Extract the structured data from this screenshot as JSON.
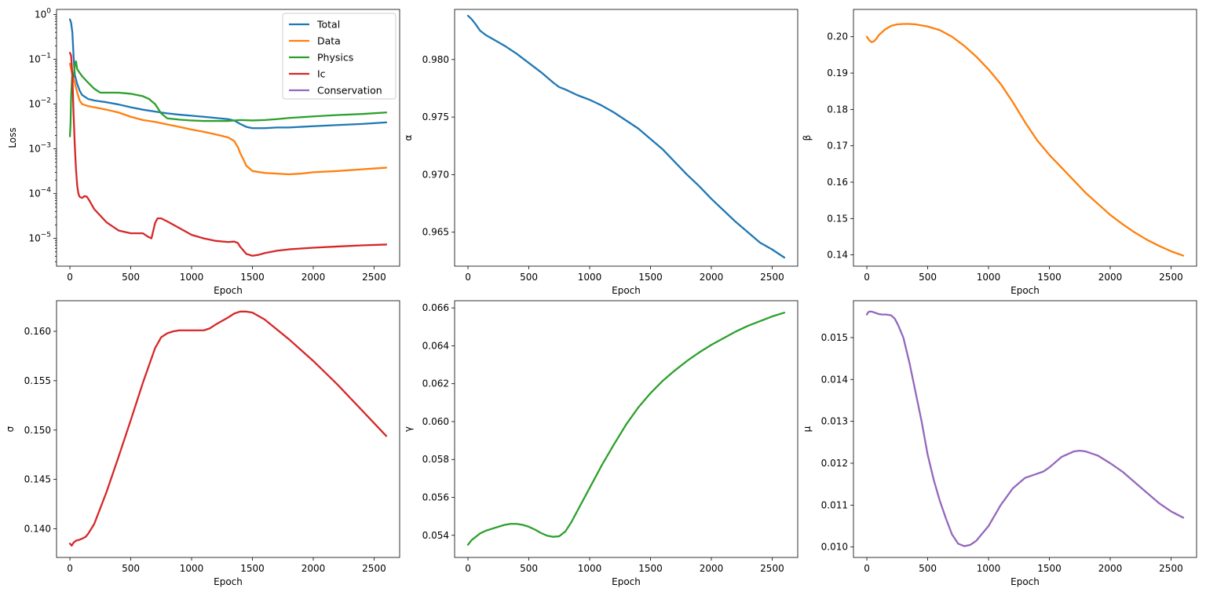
{
  "chart_data": [
    {
      "type": "line",
      "name": "loss",
      "xlabel": "Epoch",
      "ylabel": "Loss",
      "yscale": "log",
      "xlim": [
        -110,
        2710
      ],
      "ylim": [
        2.4e-06,
        1.3
      ],
      "xticks": [
        0,
        500,
        1000,
        1500,
        2000,
        2500
      ],
      "yticks": [
        {
          "value": 1e-05,
          "base": "10",
          "exp": "−5"
        },
        {
          "value": 0.0001,
          "base": "10",
          "exp": "−4"
        },
        {
          "value": 0.001,
          "base": "10",
          "exp": "−3"
        },
        {
          "value": 0.01,
          "base": "10",
          "exp": "−2"
        },
        {
          "value": 0.1,
          "base": "10",
          "exp": "−1"
        },
        {
          "value": 1,
          "base": "10",
          "exp": "0"
        }
      ],
      "legend_position": "top-right",
      "series": [
        {
          "name": "Total",
          "color": "#1f77b4",
          "x": [
            0,
            10,
            20,
            30,
            40,
            60,
            80,
            100,
            150,
            200,
            300,
            400,
            500,
            600,
            700,
            800,
            900,
            1000,
            1100,
            1200,
            1300,
            1350,
            1400,
            1450,
            1500,
            1600,
            1700,
            1800,
            2000,
            2200,
            2400,
            2600
          ],
          "y": [
            0.78,
            0.65,
            0.4,
            0.12,
            0.045,
            0.028,
            0.02,
            0.016,
            0.013,
            0.012,
            0.011,
            0.0098,
            0.0085,
            0.0075,
            0.0068,
            0.0062,
            0.0058,
            0.0055,
            0.0052,
            0.0049,
            0.0046,
            0.0043,
            0.0036,
            0.0031,
            0.0029,
            0.0029,
            0.003,
            0.003,
            0.0032,
            0.0034,
            0.0036,
            0.0039
          ]
        },
        {
          "name": "Data",
          "color": "#ff7f0e",
          "x": [
            0,
            10,
            20,
            40,
            60,
            80,
            100,
            150,
            200,
            300,
            400,
            500,
            600,
            700,
            800,
            900,
            1000,
            1100,
            1200,
            1300,
            1350,
            1380,
            1400,
            1430,
            1450,
            1500,
            1600,
            1700,
            1800,
            1900,
            2000,
            2200,
            2400,
            2600
          ],
          "y": [
            0.08,
            0.06,
            0.045,
            0.03,
            0.018,
            0.012,
            0.01,
            0.009,
            0.0085,
            0.0075,
            0.0065,
            0.0052,
            0.0044,
            0.004,
            0.0035,
            0.0031,
            0.0027,
            0.0024,
            0.0021,
            0.0018,
            0.0015,
            0.0011,
            0.0008,
            0.00055,
            0.00042,
            0.00032,
            0.00029,
            0.00028,
            0.00027,
            0.00028,
            0.0003,
            0.00032,
            0.00035,
            0.00038
          ]
        },
        {
          "name": "Physics",
          "color": "#2ca02c",
          "x": [
            0,
            5,
            10,
            20,
            30,
            40,
            50,
            60,
            70,
            80,
            100,
            150,
            200,
            250,
            300,
            400,
            500,
            600,
            650,
            700,
            750,
            800,
            900,
            1000,
            1100,
            1200,
            1300,
            1400,
            1500,
            1600,
            1700,
            1800,
            2000,
            2200,
            2400,
            2600
          ],
          "y": [
            0.0019,
            0.0035,
            0.015,
            0.05,
            0.04,
            0.07,
            0.09,
            0.06,
            0.055,
            0.05,
            0.042,
            0.03,
            0.022,
            0.018,
            0.018,
            0.018,
            0.017,
            0.015,
            0.013,
            0.01,
            0.0062,
            0.0048,
            0.0045,
            0.0043,
            0.0042,
            0.0042,
            0.0042,
            0.0044,
            0.0043,
            0.0044,
            0.0046,
            0.0049,
            0.0053,
            0.0057,
            0.006,
            0.0065
          ]
        },
        {
          "name": "Ic",
          "color": "#d62728",
          "x": [
            0,
            10,
            20,
            30,
            40,
            50,
            60,
            70,
            80,
            100,
            120,
            140,
            160,
            200,
            300,
            400,
            500,
            550,
            600,
            640,
            670,
            700,
            720,
            750,
            800,
            900,
            1000,
            1100,
            1200,
            1300,
            1350,
            1380,
            1400,
            1450,
            1500,
            1550,
            1600,
            1700,
            1800,
            2000,
            2200,
            2400,
            2600
          ],
          "y": [
            0.14,
            0.12,
            0.045,
            0.006,
            0.0012,
            0.00035,
            0.00015,
            0.0001,
            8.5e-05,
            8e-05,
            8.8e-05,
            8.5e-05,
            7e-05,
            4.5e-05,
            2.3e-05,
            1.5e-05,
            1.3e-05,
            1.3e-05,
            1.3e-05,
            1.1e-05,
            1e-05,
            2.2e-05,
            2.8e-05,
            2.8e-05,
            2.4e-05,
            1.7e-05,
            1.2e-05,
            1e-05,
            8.8e-06,
            8.3e-06,
            8.5e-06,
            7.9e-06,
            6.5e-06,
            4.5e-06,
            4.1e-06,
            4.3e-06,
            4.7e-06,
            5.3e-06,
            5.7e-06,
            6.2e-06,
            6.6e-06,
            7e-06,
            7.3e-06
          ]
        },
        {
          "name": "Conservation",
          "color": "#9467bd",
          "x": [],
          "y": []
        }
      ]
    },
    {
      "type": "line",
      "name": "alpha",
      "xlabel": "Epoch",
      "ylabel": "α",
      "xlim": [
        -110,
        2710
      ],
      "ylim": [
        0.96205,
        0.98435
      ],
      "xticks": [
        0,
        500,
        1000,
        1500,
        2000,
        2500
      ],
      "yticks": [
        0.965,
        0.97,
        0.975,
        0.98
      ],
      "ytick_labels": [
        "0.965",
        "0.970",
        "0.975",
        "0.980"
      ],
      "series": [
        {
          "name": "α",
          "color": "#1f77b4",
          "x": [
            0,
            30,
            60,
            100,
            150,
            200,
            300,
            400,
            500,
            600,
            700,
            750,
            800,
            900,
            1000,
            1100,
            1200,
            1300,
            1400,
            1500,
            1600,
            1700,
            1800,
            1900,
            2000,
            2100,
            2200,
            2300,
            2400,
            2500,
            2600
          ],
          "y": [
            0.9838,
            0.9835,
            0.9831,
            0.9825,
            0.9821,
            0.9818,
            0.9812,
            0.9805,
            0.9797,
            0.9789,
            0.978,
            0.9776,
            0.9774,
            0.9769,
            0.9765,
            0.976,
            0.9754,
            0.9747,
            0.974,
            0.9731,
            0.9722,
            0.9711,
            0.97,
            0.969,
            0.9679,
            0.9669,
            0.9659,
            0.965,
            0.9641,
            0.9635,
            0.9628
          ]
        }
      ]
    },
    {
      "type": "line",
      "name": "beta",
      "xlabel": "Epoch",
      "ylabel": "β",
      "xlim": [
        -110,
        2710
      ],
      "ylim": [
        0.1369,
        0.2075
      ],
      "xticks": [
        0,
        500,
        1000,
        1500,
        2000,
        2500
      ],
      "yticks": [
        0.14,
        0.15,
        0.16,
        0.17,
        0.18,
        0.19,
        0.2
      ],
      "ytick_labels": [
        "0.14",
        "0.15",
        "0.16",
        "0.17",
        "0.18",
        "0.19",
        "0.20"
      ],
      "series": [
        {
          "name": "β",
          "color": "#ff7f0e",
          "x": [
            0,
            20,
            40,
            60,
            80,
            100,
            150,
            200,
            250,
            300,
            350,
            400,
            500,
            600,
            700,
            800,
            900,
            1000,
            1100,
            1200,
            1300,
            1400,
            1500,
            1600,
            1700,
            1800,
            1900,
            2000,
            2100,
            2200,
            2300,
            2400,
            2500,
            2600
          ],
          "y": [
            0.2,
            0.199,
            0.1985,
            0.1988,
            0.1995,
            0.2005,
            0.202,
            0.203,
            0.2034,
            0.2035,
            0.2035,
            0.2034,
            0.2028,
            0.2018,
            0.2,
            0.1975,
            0.1945,
            0.191,
            0.187,
            0.182,
            0.1765,
            0.1715,
            0.1675,
            0.164,
            0.1605,
            0.157,
            0.154,
            0.151,
            0.1485,
            0.1462,
            0.1442,
            0.1425,
            0.141,
            0.1398
          ]
        }
      ]
    },
    {
      "type": "line",
      "name": "sigma",
      "xlabel": "Epoch",
      "ylabel": "σ",
      "xlim": [
        -110,
        2710
      ],
      "ylim": [
        0.1371,
        0.1631
      ],
      "xticks": [
        0,
        500,
        1000,
        1500,
        2000,
        2500
      ],
      "yticks": [
        0.14,
        0.145,
        0.15,
        0.155,
        0.16
      ],
      "ytick_labels": [
        "0.140",
        "0.145",
        "0.150",
        "0.155",
        "0.160"
      ],
      "series": [
        {
          "name": "σ",
          "color": "#d62728",
          "x": [
            0,
            15,
            30,
            50,
            80,
            100,
            130,
            150,
            200,
            300,
            400,
            500,
            600,
            700,
            750,
            800,
            850,
            900,
            950,
            1000,
            1050,
            1100,
            1150,
            1200,
            1300,
            1350,
            1400,
            1450,
            1500,
            1600,
            1800,
            2000,
            2200,
            2400,
            2600
          ],
          "y": [
            0.1385,
            0.1383,
            0.1386,
            0.1388,
            0.1389,
            0.139,
            0.1392,
            0.1395,
            0.1405,
            0.1437,
            0.1473,
            0.151,
            0.1548,
            0.1583,
            0.1594,
            0.1598,
            0.16,
            0.1601,
            0.1601,
            0.1601,
            0.1601,
            0.1601,
            0.1603,
            0.1607,
            0.1614,
            0.1618,
            0.162,
            0.162,
            0.1619,
            0.1612,
            0.1592,
            0.157,
            0.1546,
            0.152,
            0.1494
          ]
        }
      ]
    },
    {
      "type": "line",
      "name": "gamma",
      "xlabel": "Epoch",
      "ylabel": "γ",
      "xlim": [
        -110,
        2710
      ],
      "ylim": [
        0.05283,
        0.06638
      ],
      "xticks": [
        0,
        500,
        1000,
        1500,
        2000,
        2500
      ],
      "yticks": [
        0.054,
        0.056,
        0.058,
        0.06,
        0.062,
        0.064,
        0.066
      ],
      "ytick_labels": [
        "0.054",
        "0.056",
        "0.058",
        "0.060",
        "0.062",
        "0.064",
        "0.066"
      ],
      "series": [
        {
          "name": "γ",
          "color": "#2ca02c",
          "x": [
            0,
            30,
            60,
            100,
            150,
            200,
            250,
            300,
            350,
            400,
            450,
            500,
            550,
            600,
            650,
            700,
            750,
            800,
            850,
            900,
            1000,
            1100,
            1200,
            1300,
            1400,
            1500,
            1600,
            1700,
            1800,
            1900,
            2000,
            2100,
            2200,
            2300,
            2400,
            2500,
            2600
          ],
          "y": [
            0.0535,
            0.05375,
            0.0539,
            0.0541,
            0.05425,
            0.05435,
            0.05445,
            0.05455,
            0.0546,
            0.0546,
            0.05455,
            0.05445,
            0.0543,
            0.05412,
            0.05398,
            0.05392,
            0.05395,
            0.0542,
            0.0547,
            0.0553,
            0.0565,
            0.0577,
            0.0588,
            0.05985,
            0.06075,
            0.0615,
            0.06215,
            0.0627,
            0.0632,
            0.06365,
            0.06405,
            0.0644,
            0.06475,
            0.06505,
            0.0653,
            0.06555,
            0.06575
          ]
        }
      ]
    },
    {
      "type": "line",
      "name": "mu",
      "xlabel": "Epoch",
      "ylabel": "μ",
      "xlim": [
        -110,
        2710
      ],
      "ylim": [
        0.00975,
        0.01588
      ],
      "xticks": [
        0,
        500,
        1000,
        1500,
        2000,
        2500
      ],
      "yticks": [
        0.01,
        0.011,
        0.012,
        0.013,
        0.014,
        0.015
      ],
      "ytick_labels": [
        "0.010",
        "0.011",
        "0.012",
        "0.013",
        "0.014",
        "0.015"
      ],
      "series": [
        {
          "name": "μ",
          "color": "#9467bd",
          "x": [
            0,
            10,
            20,
            40,
            60,
            80,
            100,
            130,
            160,
            200,
            230,
            260,
            300,
            350,
            400,
            450,
            500,
            550,
            600,
            650,
            700,
            750,
            800,
            850,
            900,
            1000,
            1100,
            1200,
            1300,
            1400,
            1450,
            1500,
            1600,
            1700,
            1750,
            1800,
            1900,
            2000,
            2100,
            2200,
            2300,
            2400,
            2500,
            2600
          ],
          "y": [
            0.01555,
            0.0156,
            0.01562,
            0.01562,
            0.0156,
            0.01558,
            0.01556,
            0.01555,
            0.01555,
            0.01553,
            0.01545,
            0.01528,
            0.015,
            0.0144,
            0.0137,
            0.013,
            0.0122,
            0.0116,
            0.0111,
            0.01068,
            0.0103,
            0.01008,
            0.01002,
            0.01005,
            0.01015,
            0.0105,
            0.011,
            0.0114,
            0.01165,
            0.01175,
            0.0118,
            0.0119,
            0.01215,
            0.01228,
            0.0123,
            0.01228,
            0.01218,
            0.012,
            0.0118,
            0.01155,
            0.0113,
            0.01105,
            0.01085,
            0.0107
          ]
        }
      ]
    }
  ]
}
